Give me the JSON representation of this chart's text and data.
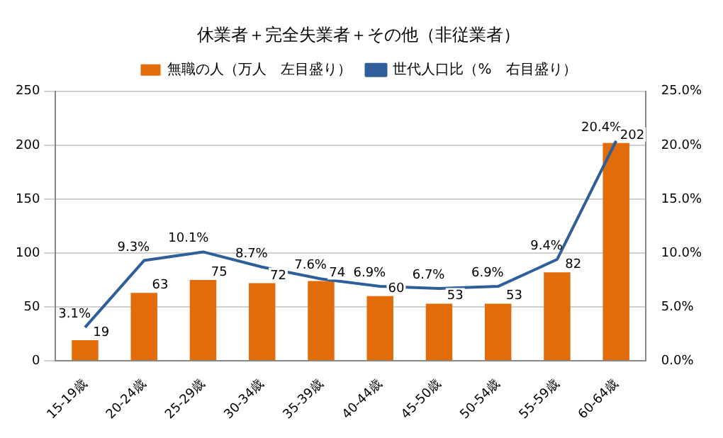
{
  "chart_data": {
    "type": "bar",
    "title": "休業者＋完全失業者＋その他（非従業者）",
    "categories": [
      "15-19歳",
      "20-24歳",
      "25-29歳",
      "30-34歳",
      "35-39歳",
      "40-44歳",
      "45-50歳",
      "50-54歳",
      "55-59歳",
      "60-64歳"
    ],
    "series": [
      {
        "name": "無職の人（万人　左目盛り）",
        "color": "#e36c0a",
        "values": [
          19,
          63,
          75,
          72,
          74,
          60,
          53,
          53,
          82,
          202
        ],
        "value_labels": [
          "19",
          "63",
          "75",
          "72",
          "74",
          "60",
          "53",
          "53",
          "82",
          "202"
        ]
      },
      {
        "name": "世代人口比（%　右目盛り）",
        "type": "line",
        "axis": "y2",
        "color": "#2e5f9a",
        "values": [
          3.1,
          9.3,
          10.1,
          8.7,
          7.6,
          6.9,
          6.7,
          6.9,
          9.4,
          20.4
        ],
        "value_labels": [
          "3.1%",
          "9.3%",
          "10.1%",
          "8.7%",
          "7.6%",
          "6.9%",
          "6.7%",
          "6.9%",
          "9.4%",
          "20.4%"
        ]
      }
    ],
    "ylim": [
      0,
      250
    ],
    "yticks": [
      0,
      50,
      100,
      150,
      200,
      250
    ],
    "y2lim": [
      0,
      25
    ],
    "y2ticks": [
      {
        "value": 0,
        "label": "0.0%"
      },
      {
        "value": 5,
        "label": "5.0%"
      },
      {
        "value": 10,
        "label": "10.0%"
      },
      {
        "value": 15,
        "label": "15.0%"
      },
      {
        "value": 20,
        "label": "20.0%"
      },
      {
        "value": 25,
        "label": "25.0%"
      }
    ],
    "grid": "y",
    "legend": "top",
    "marker": "none",
    "line_style": "solid"
  }
}
